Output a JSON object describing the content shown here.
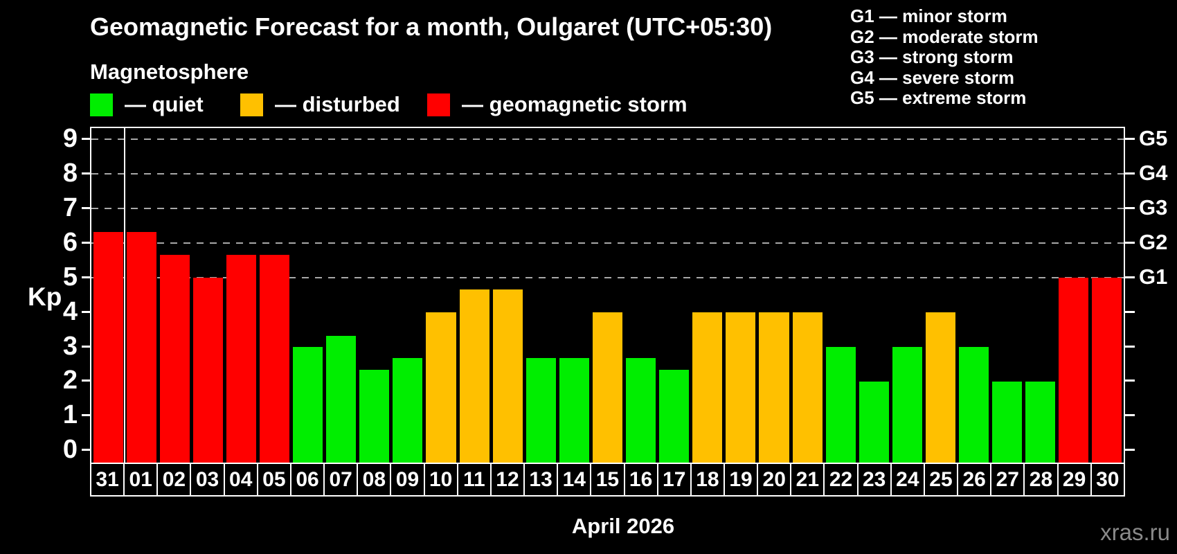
{
  "header": {
    "title": "Geomagnetic Forecast for a month, Oulgaret (UTC+05:30)",
    "subtitle": "Magnetosphere"
  },
  "legend": {
    "items": [
      {
        "status": "quiet",
        "label": "— quiet",
        "color": "#00ee00"
      },
      {
        "status": "disturbed",
        "label": "— disturbed",
        "color": "#ffc000"
      },
      {
        "status": "storm",
        "label": "— geomagnetic storm",
        "color": "#ff0000"
      }
    ]
  },
  "gscale_legend": {
    "lines": [
      "G1 — minor storm",
      "G2 — moderate storm",
      "G3 — strong storm",
      "G4 — severe storm",
      "G5 — extreme storm"
    ]
  },
  "chart_data": {
    "type": "bar",
    "title": "Geomagnetic Forecast for a month, Oulgaret (UTC+05:30)",
    "ylabel": "Kp",
    "xlabel": "April 2026",
    "ylim": [
      0,
      9
    ],
    "yticks": [
      0,
      1,
      2,
      3,
      4,
      5,
      6,
      7,
      8,
      9
    ],
    "gridlines_at_kp": [
      5,
      6,
      7,
      8,
      9
    ],
    "grid": "dashed horizontal lines at storm levels only",
    "legend_position": "top-left",
    "right_axis": [
      {
        "label": "G5",
        "kp": 9
      },
      {
        "label": "G4",
        "kp": 8
      },
      {
        "label": "G3",
        "kp": 7
      },
      {
        "label": "G2",
        "kp": 6
      },
      {
        "label": "G1",
        "kp": 5
      }
    ],
    "categories": [
      "31",
      "01",
      "02",
      "03",
      "04",
      "05",
      "06",
      "07",
      "08",
      "09",
      "10",
      "11",
      "12",
      "13",
      "14",
      "15",
      "16",
      "17",
      "18",
      "19",
      "20",
      "21",
      "22",
      "23",
      "24",
      "25",
      "26",
      "27",
      "28",
      "29",
      "30"
    ],
    "values": [
      6.33,
      6.33,
      5.67,
      5.0,
      5.67,
      5.67,
      3.0,
      3.33,
      2.33,
      2.67,
      4.0,
      4.67,
      4.67,
      2.67,
      2.67,
      4.0,
      2.67,
      2.33,
      4.0,
      4.0,
      4.0,
      4.0,
      3.0,
      2.0,
      3.0,
      4.0,
      3.0,
      2.0,
      2.0,
      5.0,
      5.0
    ],
    "statuses": [
      "storm",
      "storm",
      "storm",
      "storm",
      "storm",
      "storm",
      "quiet",
      "quiet",
      "quiet",
      "quiet",
      "disturbed",
      "disturbed",
      "disturbed",
      "quiet",
      "quiet",
      "disturbed",
      "quiet",
      "quiet",
      "disturbed",
      "disturbed",
      "disturbed",
      "disturbed",
      "quiet",
      "quiet",
      "quiet",
      "disturbed",
      "quiet",
      "quiet",
      "quiet",
      "storm",
      "storm"
    ],
    "separator_after_index": 0
  },
  "footer": {
    "month_label": "April 2026",
    "watermark": "xras.ru"
  },
  "colors": {
    "background": "#000000",
    "text": "#ffffff",
    "axis": "#ffffff",
    "gridline": "#a8a8a8",
    "watermark": "#8a8a8a"
  }
}
